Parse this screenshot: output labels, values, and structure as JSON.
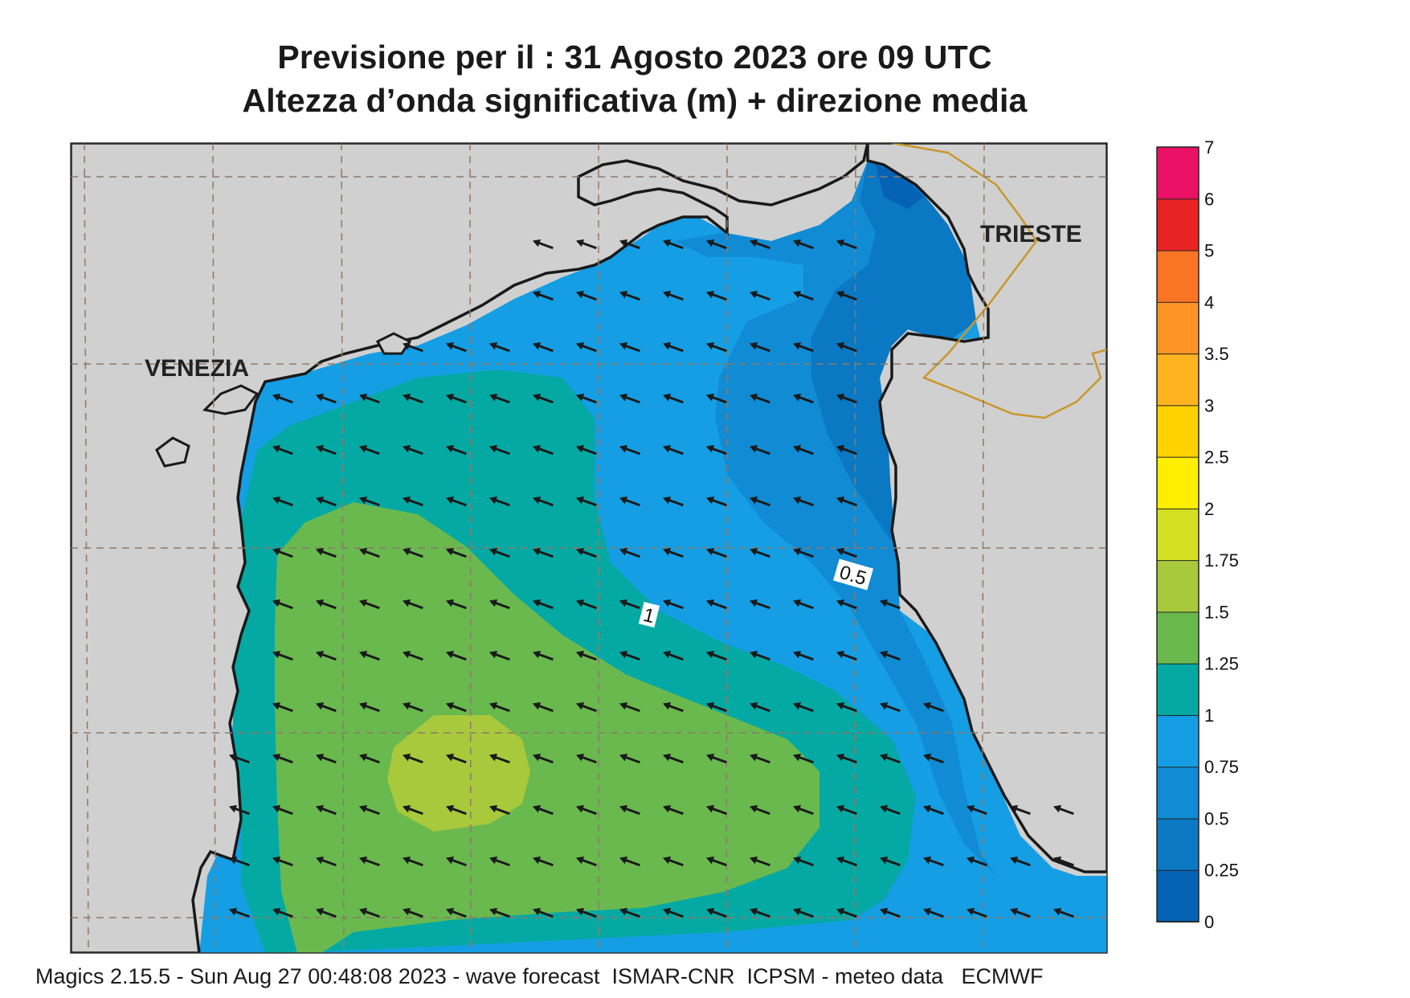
{
  "header": {
    "title_line1": "Previsione per il  :  31   Agosto  2023   ore 09 UTC",
    "title_line2": "Altezza d’onda significativa (m) + direzione media"
  },
  "map": {
    "cities": [
      "VENEZIA",
      "TRIESTE"
    ],
    "contour_labels": [
      "1",
      "0.5"
    ],
    "colors": {
      "land": "#d0d0d0",
      "coast": "#1a1a1a",
      "border": "#c8972c",
      "arrow": "#1a1a1a"
    },
    "wave_direction": "toward west-southwest"
  },
  "legend": {
    "ticks": [
      "7",
      "6",
      "5",
      "4",
      "3.5",
      "3",
      "2.5",
      "2",
      "1.75",
      "1.5",
      "1.25",
      "1",
      "0.75",
      "0.5",
      "0.25",
      "0"
    ],
    "colors": [
      "#0562b4",
      "#0b78c4",
      "#108bd4",
      "#159ee4",
      "#05a9a3",
      "#6ab94f",
      "#a8c93c",
      "#d4e021",
      "#ffee00",
      "#ffd200",
      "#ffb31f",
      "#ff9426",
      "#f97524",
      "#e82323",
      "#ea1166"
    ]
  },
  "footer": {
    "text": "Magics 2.15.5 - Sun Aug 27 00:48:08 2023 - wave forecast  ISMAR-CNR  ICPSM - meteo data   ECMWF"
  }
}
